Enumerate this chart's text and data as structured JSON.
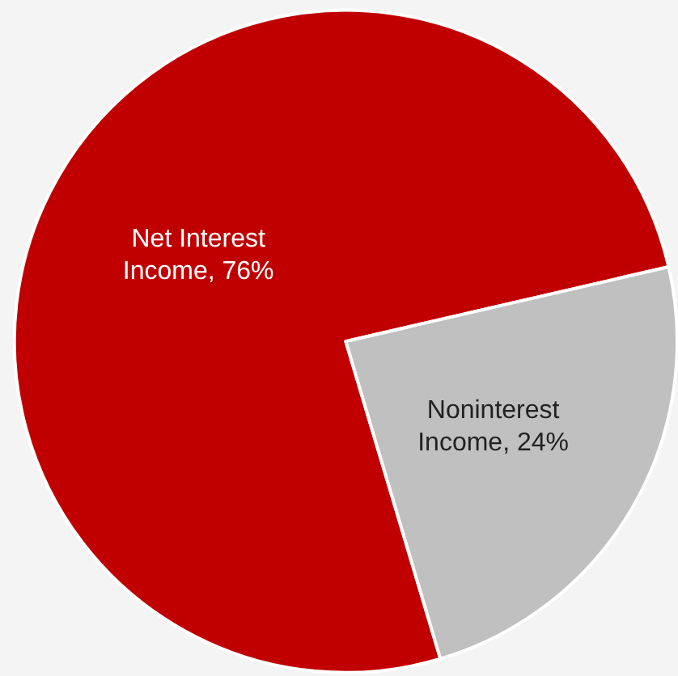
{
  "chart_data": {
    "type": "pie",
    "categories": [
      "Net Interest Income, 76%",
      "Noninterest Income, 24%"
    ],
    "values": [
      76,
      24
    ],
    "colors": [
      "#c00000",
      "#c0c0c0"
    ]
  }
}
